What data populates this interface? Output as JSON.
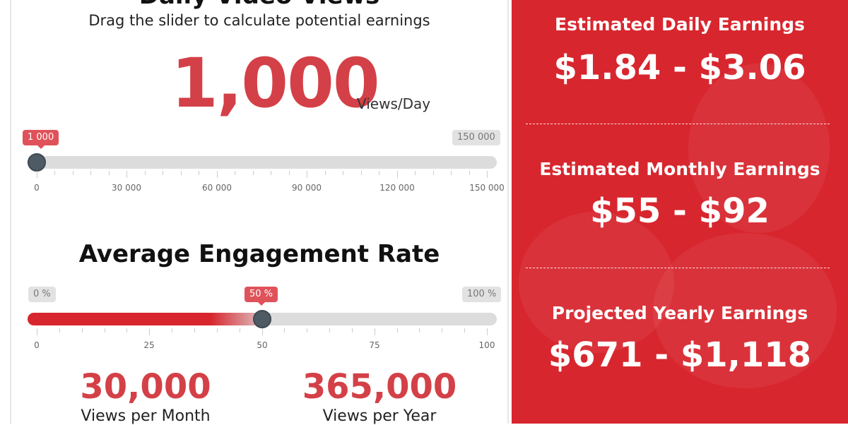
{
  "views_section": {
    "heading": "Daily Video Views",
    "subtitle": "Drag the slider to calculate potential earnings",
    "views_value": "1,000",
    "views_unit": "Views/Day",
    "slider": {
      "current_label": "1 000",
      "max_label": "150 000",
      "fill_fraction": 0.0,
      "tick_labels": [
        "0",
        "30 000",
        "60 000",
        "90 000",
        "120 000",
        "150 000"
      ]
    }
  },
  "engagement_section": {
    "heading": "Average Engagement Rate",
    "slider": {
      "min_label": "0 %",
      "current_label": "50 %",
      "max_label": "100 %",
      "fill_fraction": 0.5,
      "tick_labels": [
        "0",
        "25",
        "50",
        "75",
        "100"
      ]
    }
  },
  "stats": {
    "monthly_value": "30,000",
    "monthly_label": "Views per Month",
    "yearly_value": "365,000",
    "yearly_label": "Views per Year"
  },
  "earnings": {
    "daily_title": "Estimated Daily Earnings",
    "daily_value": "$1.84 - $3.06",
    "monthly_title": "Estimated Monthly Earnings",
    "monthly_value": "$55 - $92",
    "yearly_title": "Projected Yearly Earnings",
    "yearly_value": "$671 - $1,118"
  },
  "colors": {
    "accent": "#d8262e",
    "number_red": "#d44047",
    "handle": "#4f5b64",
    "track": "#dcdcdc"
  }
}
